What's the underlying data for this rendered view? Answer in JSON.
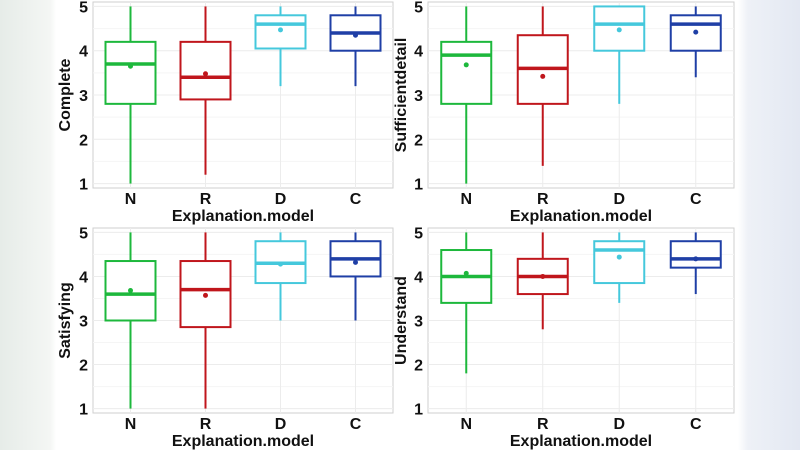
{
  "chart_data": [
    {
      "type": "box",
      "xlabel": "Explanation.model",
      "ylabel": "Complete",
      "ylim": [
        0.9,
        5.1
      ],
      "yticks": [
        1,
        2,
        3,
        4,
        5
      ],
      "categories": [
        "N",
        "R",
        "D",
        "C"
      ],
      "colors": [
        "#1db83c",
        "#c0161c",
        "#45c8dc",
        "#1f3fa6"
      ],
      "grid": true,
      "boxes": [
        {
          "min": 1.0,
          "q1": 2.8,
          "median": 3.7,
          "q3": 4.2,
          "max": 5.0,
          "mean": 3.65
        },
        {
          "min": 1.2,
          "q1": 2.9,
          "median": 3.4,
          "q3": 4.2,
          "max": 5.0,
          "mean": 3.48
        },
        {
          "min": 3.2,
          "q1": 4.05,
          "median": 4.6,
          "q3": 4.8,
          "max": 5.0,
          "mean": 4.47
        },
        {
          "min": 3.2,
          "q1": 4.0,
          "median": 4.4,
          "q3": 4.8,
          "max": 5.0,
          "mean": 4.35
        }
      ]
    },
    {
      "type": "box",
      "xlabel": "Explanation.model",
      "ylabel": "Sufficientdetail",
      "ylim": [
        0.9,
        5.1
      ],
      "yticks": [
        1,
        2,
        3,
        4,
        5
      ],
      "categories": [
        "N",
        "R",
        "D",
        "C"
      ],
      "colors": [
        "#1db83c",
        "#c0161c",
        "#45c8dc",
        "#1f3fa6"
      ],
      "grid": true,
      "boxes": [
        {
          "min": 1.0,
          "q1": 2.8,
          "median": 3.9,
          "q3": 4.2,
          "max": 5.0,
          "mean": 3.68
        },
        {
          "min": 1.4,
          "q1": 2.8,
          "median": 3.6,
          "q3": 4.35,
          "max": 5.0,
          "mean": 3.42
        },
        {
          "min": 2.8,
          "q1": 4.0,
          "median": 4.6,
          "q3": 5.0,
          "max": 5.0,
          "mean": 4.47
        },
        {
          "min": 3.4,
          "q1": 4.0,
          "median": 4.6,
          "q3": 4.8,
          "max": 5.0,
          "mean": 4.42
        }
      ]
    },
    {
      "type": "box",
      "xlabel": "Explanation.model",
      "ylabel": "Satisfying",
      "ylim": [
        0.9,
        5.1
      ],
      "yticks": [
        1,
        2,
        3,
        4,
        5
      ],
      "categories": [
        "N",
        "R",
        "D",
        "C"
      ],
      "colors": [
        "#1db83c",
        "#c0161c",
        "#45c8dc",
        "#1f3fa6"
      ],
      "grid": true,
      "boxes": [
        {
          "min": 1.0,
          "q1": 3.0,
          "median": 3.6,
          "q3": 4.35,
          "max": 5.0,
          "mean": 3.68
        },
        {
          "min": 1.0,
          "q1": 2.85,
          "median": 3.7,
          "q3": 4.35,
          "max": 5.0,
          "mean": 3.57
        },
        {
          "min": 3.0,
          "q1": 3.85,
          "median": 4.3,
          "q3": 4.8,
          "max": 5.0,
          "mean": 4.28
        },
        {
          "min": 3.0,
          "q1": 4.0,
          "median": 4.4,
          "q3": 4.8,
          "max": 5.0,
          "mean": 4.32
        }
      ]
    },
    {
      "type": "box",
      "xlabel": "Explanation.model",
      "ylabel": "Understand",
      "ylim": [
        0.9,
        5.1
      ],
      "yticks": [
        1,
        2,
        3,
        4,
        5
      ],
      "categories": [
        "N",
        "R",
        "D",
        "C"
      ],
      "colors": [
        "#1db83c",
        "#c0161c",
        "#45c8dc",
        "#1f3fa6"
      ],
      "grid": true,
      "boxes": [
        {
          "min": 1.8,
          "q1": 3.4,
          "median": 4.0,
          "q3": 4.6,
          "max": 5.0,
          "mean": 4.07
        },
        {
          "min": 2.8,
          "q1": 3.6,
          "median": 4.0,
          "q3": 4.4,
          "max": 5.0,
          "mean": 4.0
        },
        {
          "min": 3.4,
          "q1": 3.85,
          "median": 4.6,
          "q3": 4.8,
          "max": 5.0,
          "mean": 4.44
        },
        {
          "min": 3.6,
          "q1": 4.2,
          "median": 4.4,
          "q3": 4.8,
          "max": 5.0,
          "mean": 4.4
        }
      ]
    }
  ]
}
